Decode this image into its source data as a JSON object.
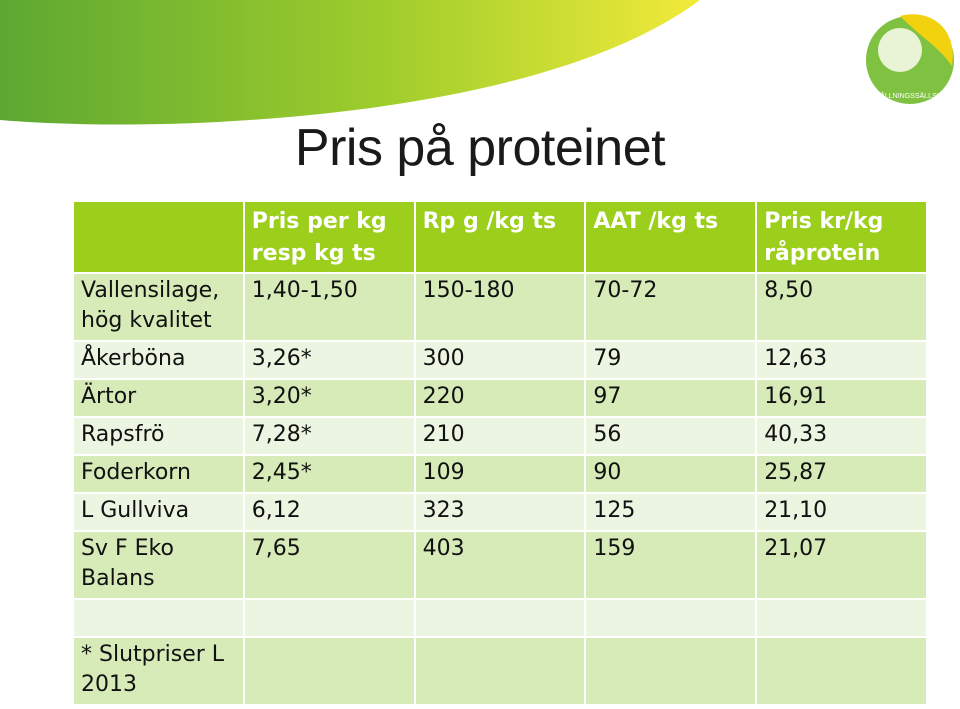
{
  "title": "Pris på proteinet",
  "logo": {
    "text": "HUSHÅLLNINGSSÄLLSKAPET",
    "icon": "leaf-logo-icon"
  },
  "colors": {
    "header": "#9bcf1b",
    "row_dark": "#d6ebb8",
    "row_light": "#ecf5e1",
    "swoosh": "#8cc43f"
  },
  "table": {
    "headers": [
      "",
      "Pris per kg resp kg ts",
      "Rp g  /kg ts",
      "AAT /kg ts",
      "Pris kr/kg råprotein"
    ],
    "rows": [
      [
        "Vallensilage, hög kvalitet",
        "1,40-1,50",
        "150-180",
        "70-72",
        "8,50"
      ],
      [
        "Åkerböna",
        "3,26*",
        "300",
        "79",
        "12,63"
      ],
      [
        "Ärtor",
        "3,20*",
        "220",
        "97",
        "16,91"
      ],
      [
        "Rapsfrö",
        "7,28*",
        "210",
        "56",
        "40,33"
      ],
      [
        "Foderkorn",
        "2,45*",
        "109",
        "90",
        "25,87"
      ],
      [
        "L Gullviva",
        "6,12",
        "323",
        "125",
        "21,10"
      ],
      [
        "Sv F Eko Balans",
        "7,65",
        "403",
        "159",
        "21,07"
      ],
      [
        "",
        "",
        "",
        "",
        ""
      ],
      [
        "* Slutpriser L 2013",
        "",
        "",
        "",
        ""
      ]
    ]
  }
}
